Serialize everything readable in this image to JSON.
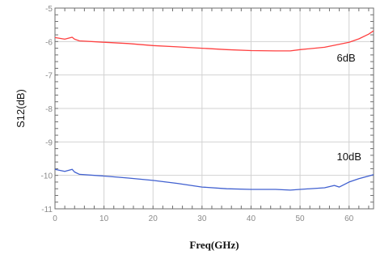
{
  "chart_data": {
    "type": "line",
    "title": "",
    "xlabel": "Freq(GHz)",
    "ylabel": "S12(dB)",
    "xlim": [
      0,
      65
    ],
    "ylim": [
      -11,
      -5
    ],
    "grid": true,
    "x_ticks": [
      0,
      10,
      20,
      30,
      40,
      50,
      60
    ],
    "x_tick_labels": [
      "0",
      "10",
      "20",
      "30",
      "40",
      "50",
      "60"
    ],
    "y_ticks": [
      -5,
      -6,
      -7,
      -8,
      -9,
      -10,
      -11
    ],
    "y_tick_labels": [
      "-5",
      "-6",
      "-7",
      "-8",
      "-9",
      "-10",
      "-11"
    ],
    "series": [
      {
        "color": "#ff4040",
        "x": [
          0,
          2,
          3.5,
          4,
          5,
          10,
          15,
          20,
          25,
          30,
          35,
          40,
          45,
          48,
          50,
          55,
          60,
          62,
          64,
          65
        ],
        "y": [
          -5.88,
          -5.93,
          -5.87,
          -5.93,
          -5.98,
          -6.02,
          -6.06,
          -6.12,
          -6.16,
          -6.2,
          -6.24,
          -6.27,
          -6.28,
          -6.28,
          -6.24,
          -6.17,
          -6.02,
          -5.92,
          -5.78,
          -5.68
        ]
      },
      {
        "color": "#4060d0",
        "x": [
          0,
          2,
          3.5,
          4,
          5,
          10,
          15,
          20,
          25,
          30,
          35,
          40,
          45,
          48,
          50,
          55,
          57,
          58,
          60,
          62,
          64,
          65
        ],
        "y": [
          -9.82,
          -9.88,
          -9.82,
          -9.9,
          -9.97,
          -10.02,
          -10.08,
          -10.15,
          -10.24,
          -10.35,
          -10.4,
          -10.42,
          -10.42,
          -10.44,
          -10.42,
          -10.37,
          -10.3,
          -10.35,
          -10.2,
          -10.1,
          -10.02,
          -9.98
        ]
      }
    ],
    "annotations": [
      {
        "text": "6dB",
        "x": 57.5,
        "y": -6.6
      },
      {
        "text": "10dB",
        "x": 57.5,
        "y": -9.55
      }
    ]
  }
}
